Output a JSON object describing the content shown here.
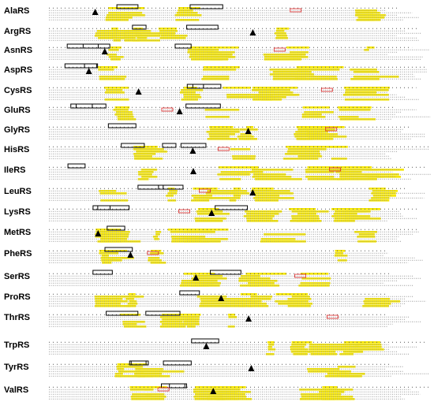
{
  "panels": [
    {
      "label": "AlaRS"
    },
    {
      "label": "ArgRS"
    },
    {
      "label": "AsnRS"
    },
    {
      "label": "AspRS"
    },
    {
      "label": "CysRS"
    },
    {
      "label": "GluRS"
    },
    {
      "label": "GlyRS"
    },
    {
      "label": "HisRS"
    },
    {
      "label": "IleRS"
    },
    {
      "label": "LeuRS"
    },
    {
      "label": "LysRS"
    },
    {
      "label": "MetRS"
    },
    {
      "label": "PheRS"
    },
    {
      "label": "SerRS"
    },
    {
      "label": "ProRS"
    },
    {
      "label": "ThrRS"
    },
    {
      "label": "TrpRS"
    },
    {
      "label": "TyrRS"
    },
    {
      "label": "ValRS"
    }
  ]
}
